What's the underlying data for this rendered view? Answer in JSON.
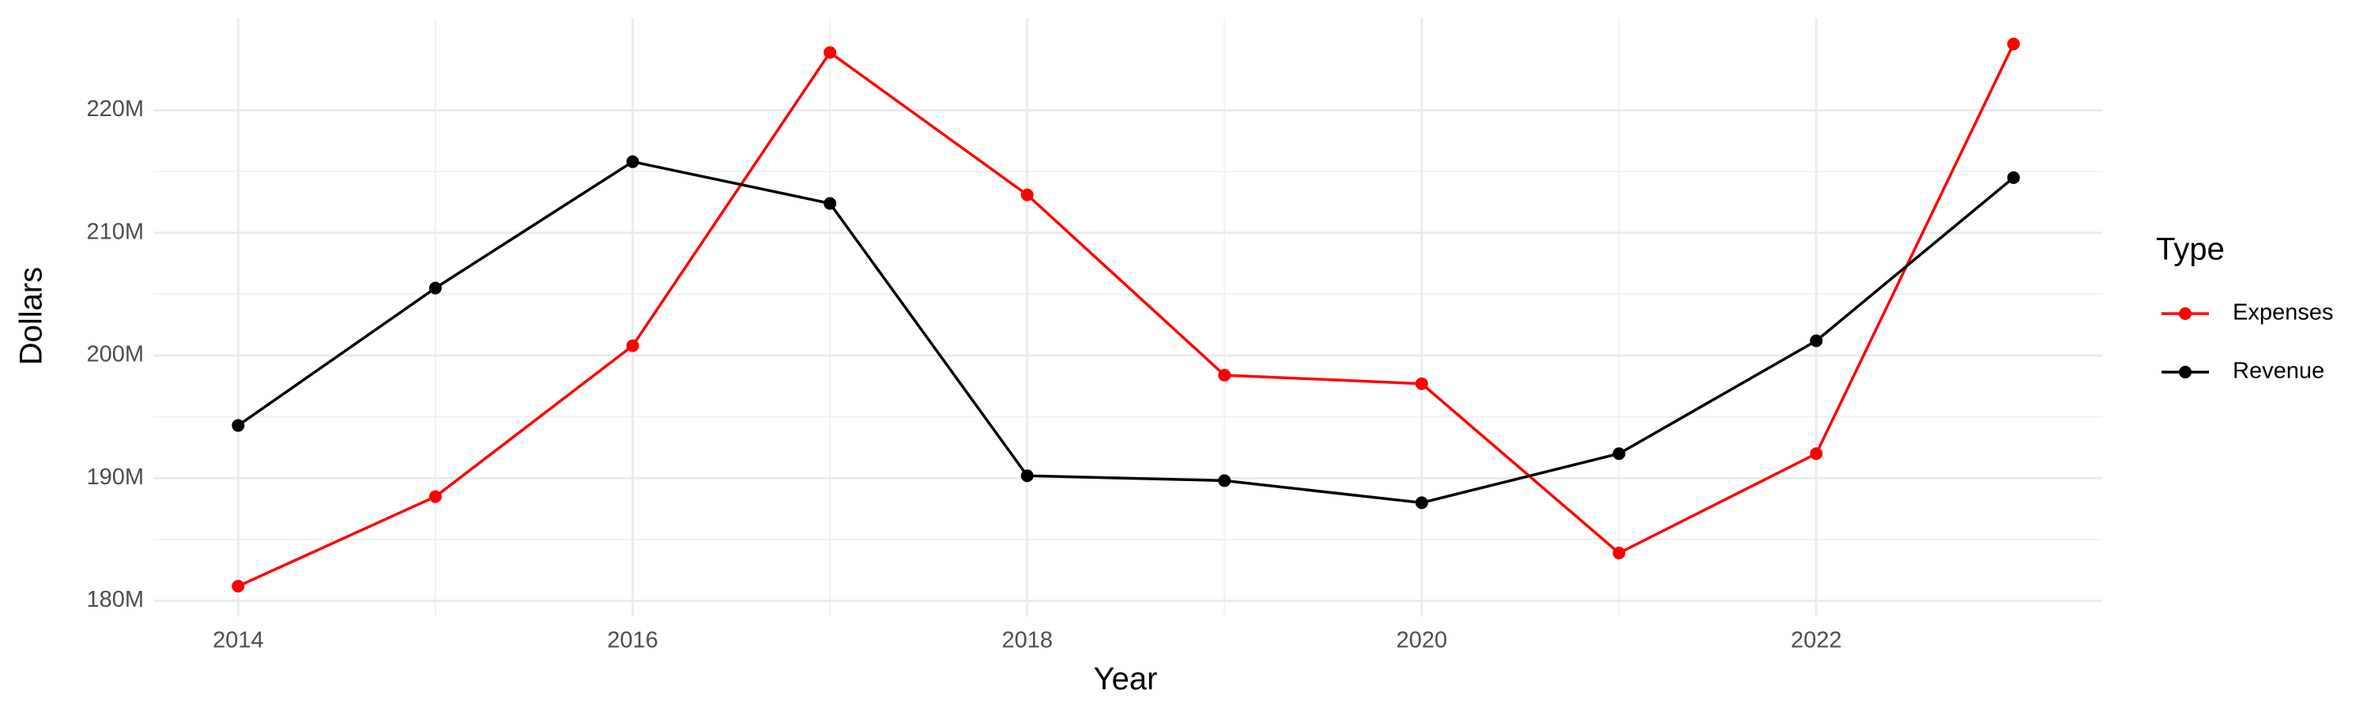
{
  "chart_data": {
    "type": "line",
    "x_label": "Year",
    "y_label": "Dollars",
    "legend_title": "Type",
    "x": [
      2014,
      2015,
      2016,
      2017,
      2018,
      2019,
      2020,
      2021,
      2022,
      2023
    ],
    "series": [
      {
        "name": "Expenses",
        "color": "#ff0000",
        "values": [
          181200000,
          188500000,
          200800000,
          224700000,
          213100000,
          198400000,
          197700000,
          183900000,
          192000000,
          225400000
        ]
      },
      {
        "name": "Revenue",
        "color": "#000000",
        "values": [
          194300000,
          205500000,
          215800000,
          212400000,
          190200000,
          189800000,
          188000000,
          192000000,
          201200000,
          214500000
        ]
      }
    ],
    "xlim": [
      2013.57,
      2023.45
    ],
    "xticks": [
      2014,
      2016,
      2018,
      2020,
      2022
    ],
    "ylim": [
      178750000,
      227500000
    ],
    "yticks": [
      {
        "value": 180000000,
        "label": "180M"
      },
      {
        "value": 190000000,
        "label": "190M"
      },
      {
        "value": 200000000,
        "label": "200M"
      },
      {
        "value": 210000000,
        "label": "210M"
      },
      {
        "value": 220000000,
        "label": "220M"
      }
    ],
    "grid": true,
    "legend": "right"
  }
}
